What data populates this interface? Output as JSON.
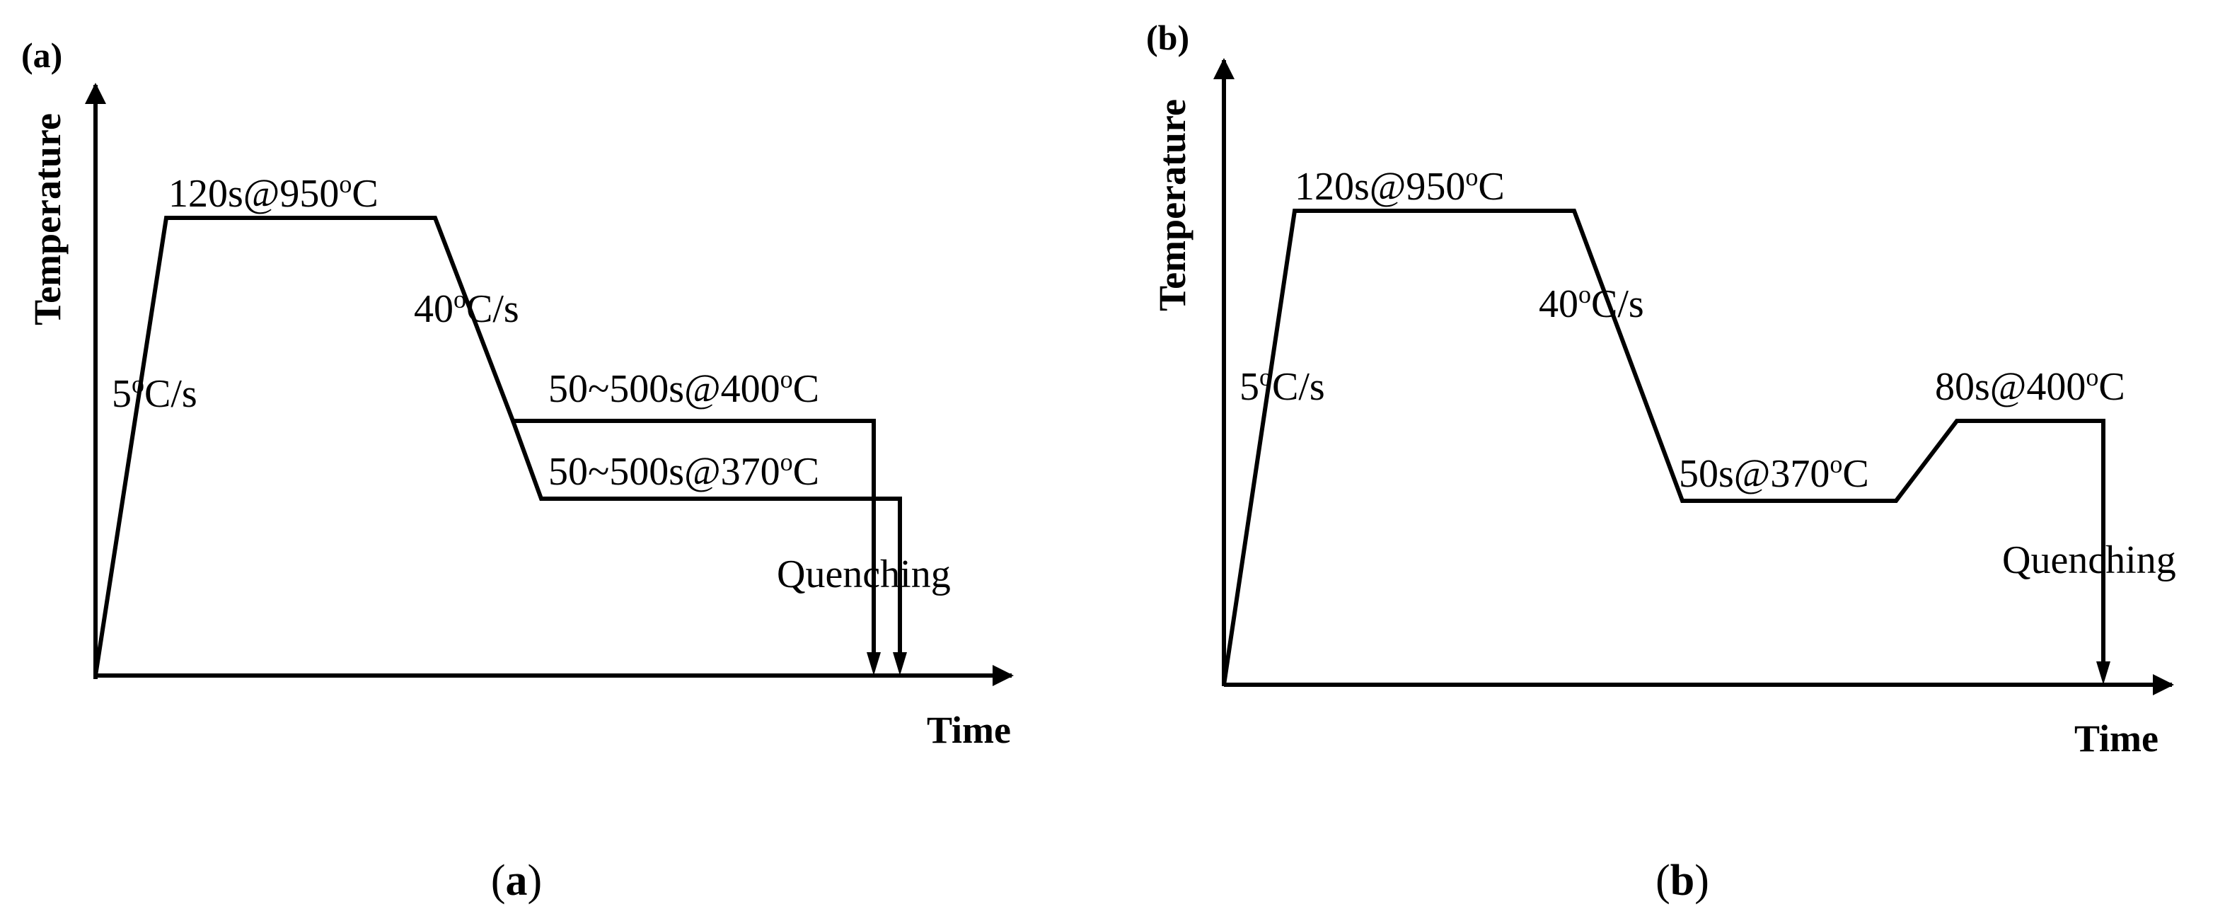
{
  "panel_a": {
    "tag": "(a)",
    "ylabel": "Temperature",
    "xlabel": "Time",
    "heating_rate": "5oC/s",
    "soak": "120s@950oC",
    "cooling_rate": "40oC/s",
    "hold_upper": "50~500s@400oC",
    "hold_lower": "50~500s@370oC",
    "quench": "Quenching"
  },
  "panel_b": {
    "tag": "(b)",
    "ylabel": "Temperature",
    "xlabel": "Time",
    "heating_rate": "5oC/s",
    "soak": "120s@950oC",
    "cooling_rate": "40oC/s",
    "hold_first": "50s@370oC",
    "hold_second": "80s@400oC",
    "quench": "Quenching"
  },
  "captions": {
    "a": {
      "open": "(",
      "letter": "a",
      "close": ")"
    },
    "b": {
      "open": "(",
      "letter": "b",
      "close": ")"
    }
  }
}
